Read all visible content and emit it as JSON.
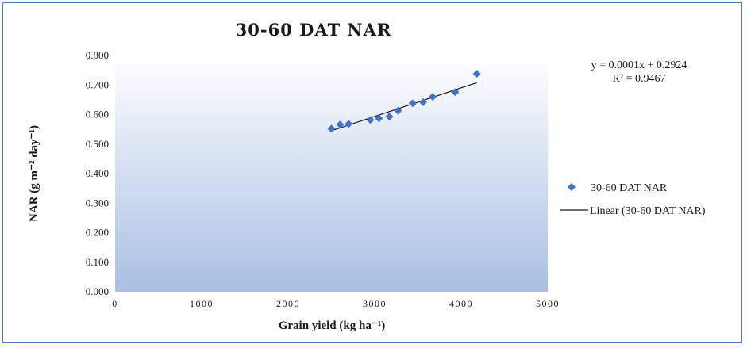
{
  "colors": {
    "marker": "#4472c4",
    "trendline": "#1a1a1a",
    "plot_bg_top": "#ffffff",
    "plot_bg_bottom": "#a9bfe3",
    "frame_border": "#4a78c2"
  },
  "icons": {
    "marker": "diamond-icon",
    "trendline": "line-icon"
  },
  "chart_data": {
    "type": "scatter",
    "title": "30-60 DAT NAR",
    "xlabel": "Grain yield (kg ha⁻¹)",
    "ylabel": "NAR (g m⁻² day⁻¹)",
    "xlim": [
      0,
      5000
    ],
    "ylim": [
      0,
      0.8
    ],
    "xticks": [
      0,
      1000,
      2000,
      3000,
      4000,
      5000
    ],
    "xtick_labels": [
      "0",
      "1000",
      "2000",
      "3000",
      "4000",
      "5000"
    ],
    "yticks": [
      0,
      0.1,
      0.2,
      0.3,
      0.4,
      0.5,
      0.6,
      0.7,
      0.8
    ],
    "ytick_labels": [
      "0.000",
      "0.100",
      "0.200",
      "0.300",
      "0.400",
      "0.500",
      "0.600",
      "0.700",
      "0.800"
    ],
    "grid": false,
    "legend_position": "right",
    "series": [
      {
        "name": "30-60 DAT NAR",
        "marker": "diamond",
        "x": [
          2500,
          2600,
          2700,
          2950,
          3050,
          3170,
          3270,
          3440,
          3560,
          3670,
          3930,
          4180
        ],
        "y": [
          0.552,
          0.566,
          0.568,
          0.582,
          0.587,
          0.593,
          0.613,
          0.638,
          0.642,
          0.66,
          0.676,
          0.738
        ]
      }
    ],
    "trendline": {
      "name": "Linear (30-60 DAT NAR)",
      "x_range": [
        2500,
        4180
      ],
      "y_range": [
        0.545,
        0.708
      ],
      "equation": "y = 0.0001x  + 0.2924",
      "r_squared": "R² = 0.9467"
    }
  }
}
